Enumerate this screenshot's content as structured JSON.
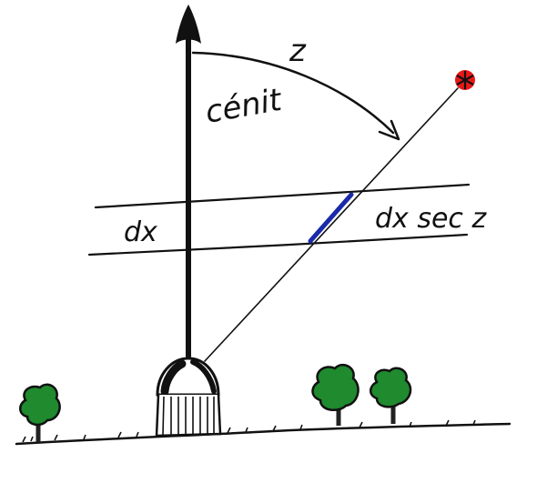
{
  "labels": {
    "zenith_angle": "z",
    "zenith": "cénit",
    "layer_thickness": "dx",
    "slant_path": "dx sec z"
  },
  "icons": {
    "star": "star-icon",
    "observatory": "observatory-dome-icon",
    "tree": "tree-icon"
  },
  "colors": {
    "ink": "#111111",
    "slant_segment": "#1a2aa8",
    "star": "#e81818",
    "tree_foliage": "#1f8a2e",
    "tree_trunk": "#2a2a2a"
  }
}
